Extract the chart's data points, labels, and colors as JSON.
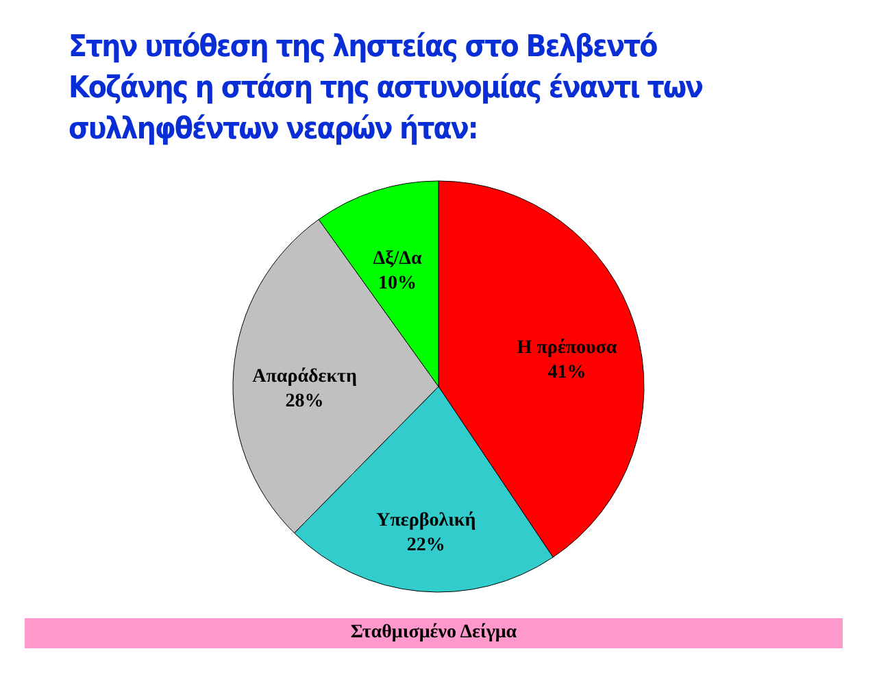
{
  "chart_data": {
    "type": "pie",
    "title": "Στην υπόθεση της ληστείας στο Βελβεντό Κοζάνης η στάση της αστυνομίας έναντι των συλληφθέντων νεαρών ήταν:",
    "categories": [
      "Η πρέπουσα",
      "Υπερβολική",
      "Απαράδεκτη",
      "Δξ/Δα"
    ],
    "values": [
      41,
      22,
      28,
      10
    ],
    "value_labels": [
      "41%",
      "22%",
      "28%",
      "10%"
    ],
    "colors": [
      "#ff0000",
      "#33cccc",
      "#c0c0c0",
      "#00ff00"
    ],
    "annotations": [
      "Σταθμισμένο Δείγμα"
    ]
  }
}
